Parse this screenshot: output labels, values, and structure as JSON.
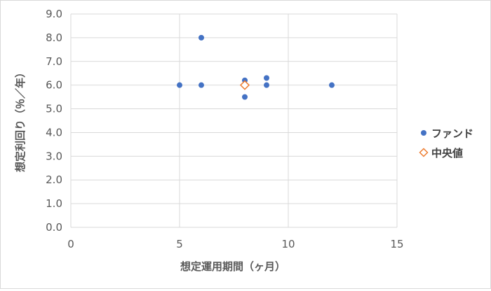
{
  "chart_data": {
    "type": "scatter",
    "title": "",
    "xlabel": "想定運用期間（ヶ月）",
    "ylabel": "想定利回り（％／年）",
    "xlim": [
      0,
      15
    ],
    "ylim": [
      0,
      9
    ],
    "x_ticks": [
      "0",
      "5",
      "10",
      "15"
    ],
    "y_ticks": [
      "0.0",
      "1.0",
      "2.0",
      "3.0",
      "4.0",
      "5.0",
      "6.0",
      "7.0",
      "8.0",
      "9.0"
    ],
    "grid": true,
    "legend_position": "right",
    "series": [
      {
        "name": "ファンド",
        "marker": "circle",
        "color": "#4472c4",
        "points": [
          {
            "x": 5,
            "y": 6.0
          },
          {
            "x": 6,
            "y": 8.0
          },
          {
            "x": 6,
            "y": 6.0
          },
          {
            "x": 8,
            "y": 6.2
          },
          {
            "x": 8,
            "y": 6.0
          },
          {
            "x": 8,
            "y": 5.5
          },
          {
            "x": 9,
            "y": 6.3
          },
          {
            "x": 9,
            "y": 6.0
          },
          {
            "x": 12,
            "y": 6.0
          }
        ]
      },
      {
        "name": "中央値",
        "marker": "diamond",
        "color": "#ed7d31",
        "points": [
          {
            "x": 8,
            "y": 6.0
          }
        ]
      }
    ]
  }
}
